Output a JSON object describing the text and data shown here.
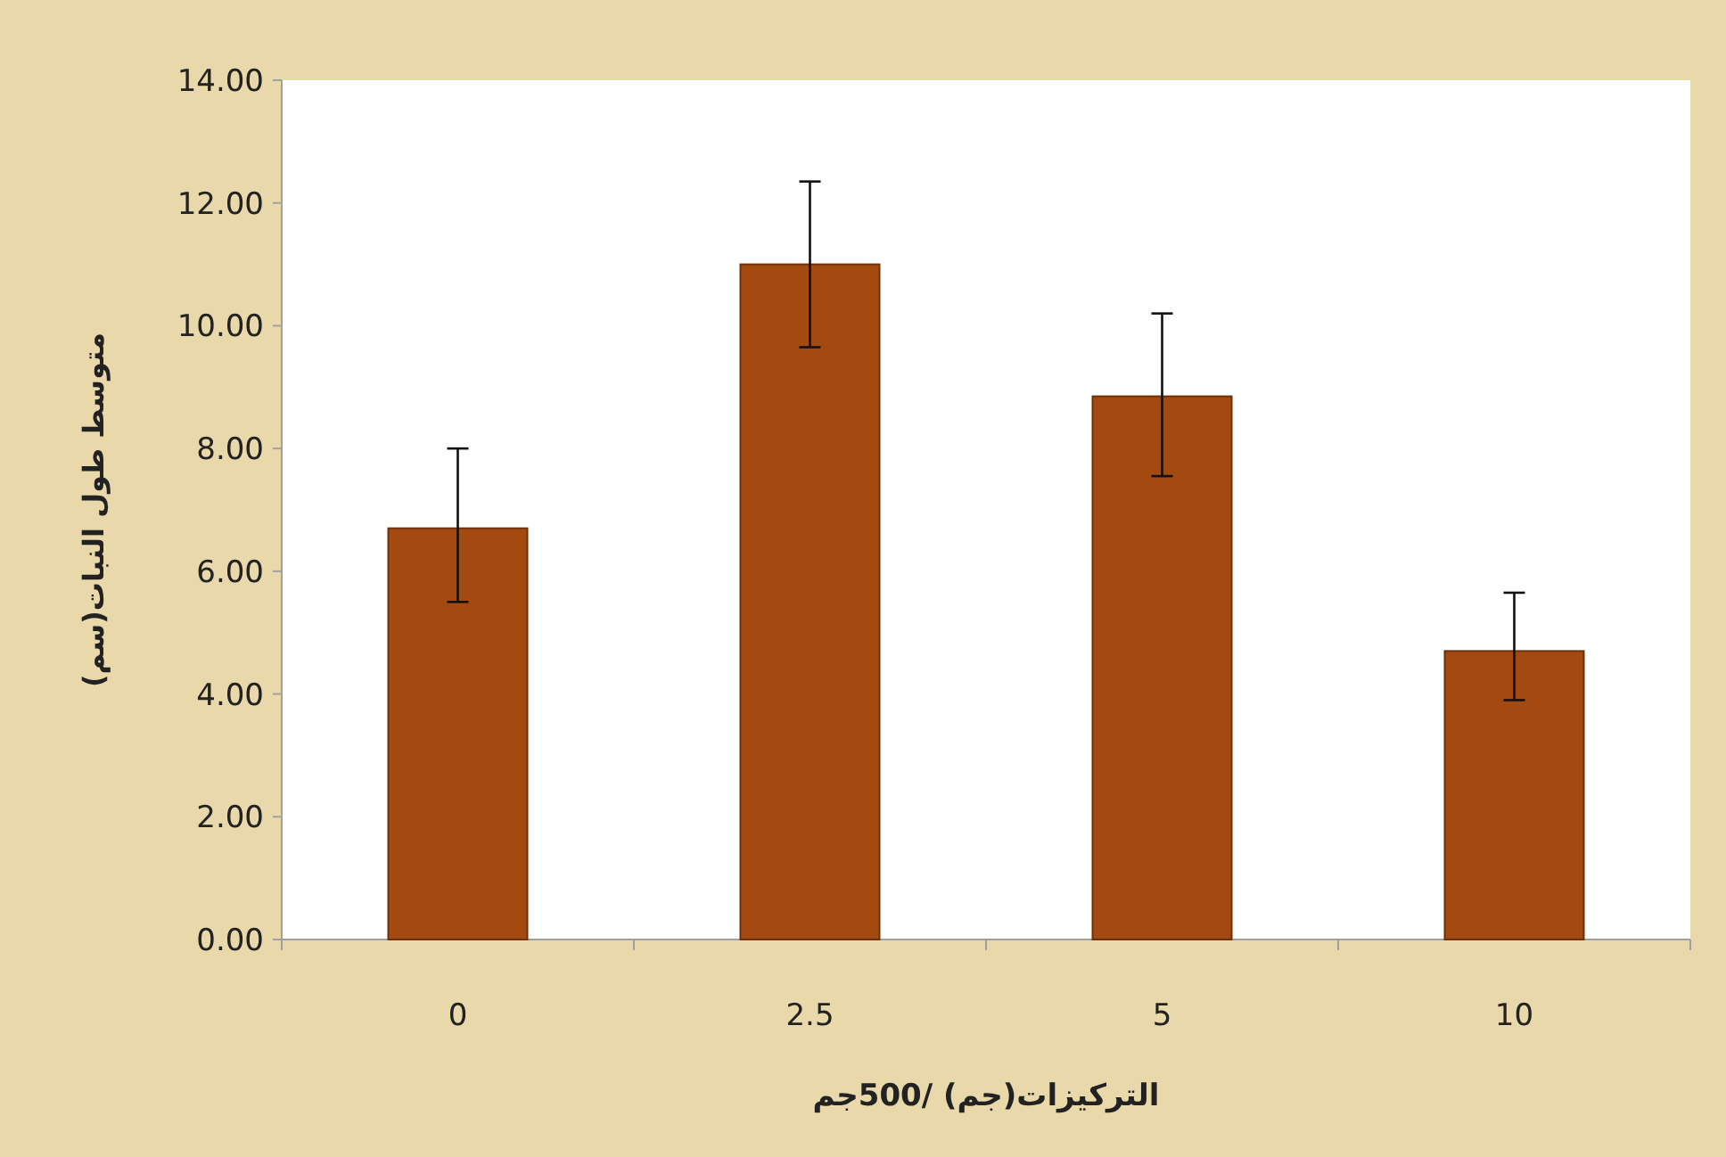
{
  "chart_data": {
    "type": "bar",
    "xlabel": "التركيزات(جم) /500جم",
    "ylabel": "متوسط طول النبات(سم)",
    "categories": [
      "0",
      "2.5",
      "5",
      "10"
    ],
    "values": [
      6.7,
      11.0,
      8.85,
      4.7
    ],
    "errors": [
      [
        5.5,
        8.0
      ],
      [
        9.65,
        12.35
      ],
      [
        7.55,
        10.2
      ],
      [
        3.9,
        5.65
      ]
    ],
    "color": "#a34a10",
    "ylim": [
      0,
      14
    ],
    "yticks": [
      {
        "value": 0,
        "label": "0.00"
      },
      {
        "value": 2,
        "label": "2.00"
      },
      {
        "value": 4,
        "label": "4.00"
      },
      {
        "value": 6,
        "label": "6.00"
      },
      {
        "value": 8,
        "label": "8.00"
      },
      {
        "value": 10,
        "label": "10.00"
      },
      {
        "value": 12,
        "label": "12.00"
      },
      {
        "value": 14,
        "label": "14.00"
      }
    ],
    "grid": false
  }
}
